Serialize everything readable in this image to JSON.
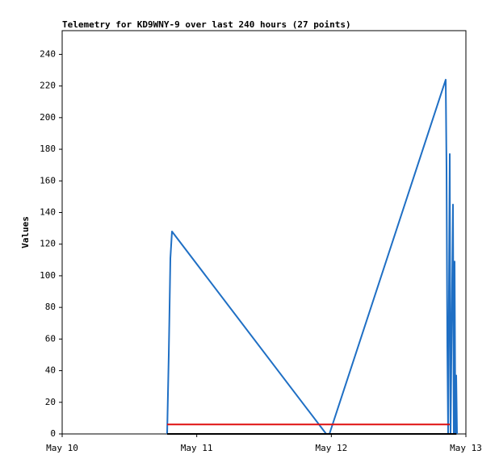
{
  "chart_data": {
    "type": "line",
    "title": "Telemetry for KD9WNY-9 over last 240 hours (27 points)",
    "y_label": "Values",
    "xlim": [
      0,
      3
    ],
    "xticks": [
      {
        "value": 0,
        "label": "May 10"
      },
      {
        "value": 1,
        "label": "May 11"
      },
      {
        "value": 2,
        "label": "May 12"
      },
      {
        "value": 3,
        "label": "May 13"
      }
    ],
    "ylim": [
      0,
      255
    ],
    "yticks": [
      0,
      20,
      40,
      60,
      80,
      100,
      120,
      140,
      160,
      180,
      200,
      220,
      240
    ],
    "series": [
      {
        "color": "#1f6fc4",
        "x": [
          0.78,
          0.792,
          0.798,
          0.804,
          0.816,
          1.962,
          1.986,
          2.85,
          2.856,
          2.862,
          2.868,
          2.88,
          2.886,
          2.904,
          2.91,
          2.916,
          2.922,
          2.928,
          2.934
        ],
        "values": [
          0,
          50,
          80,
          111,
          128,
          0,
          0,
          224,
          168,
          56,
          0,
          177,
          0,
          145,
          0,
          109,
          0,
          37,
          0
        ]
      },
      {
        "color": "#e01010",
        "x": [
          0.78,
          2.88
        ],
        "values": [
          6,
          6
        ]
      },
      {
        "color": "#000000",
        "x": [
          0.78,
          2.93
        ],
        "values": [
          0,
          0
        ]
      }
    ]
  }
}
